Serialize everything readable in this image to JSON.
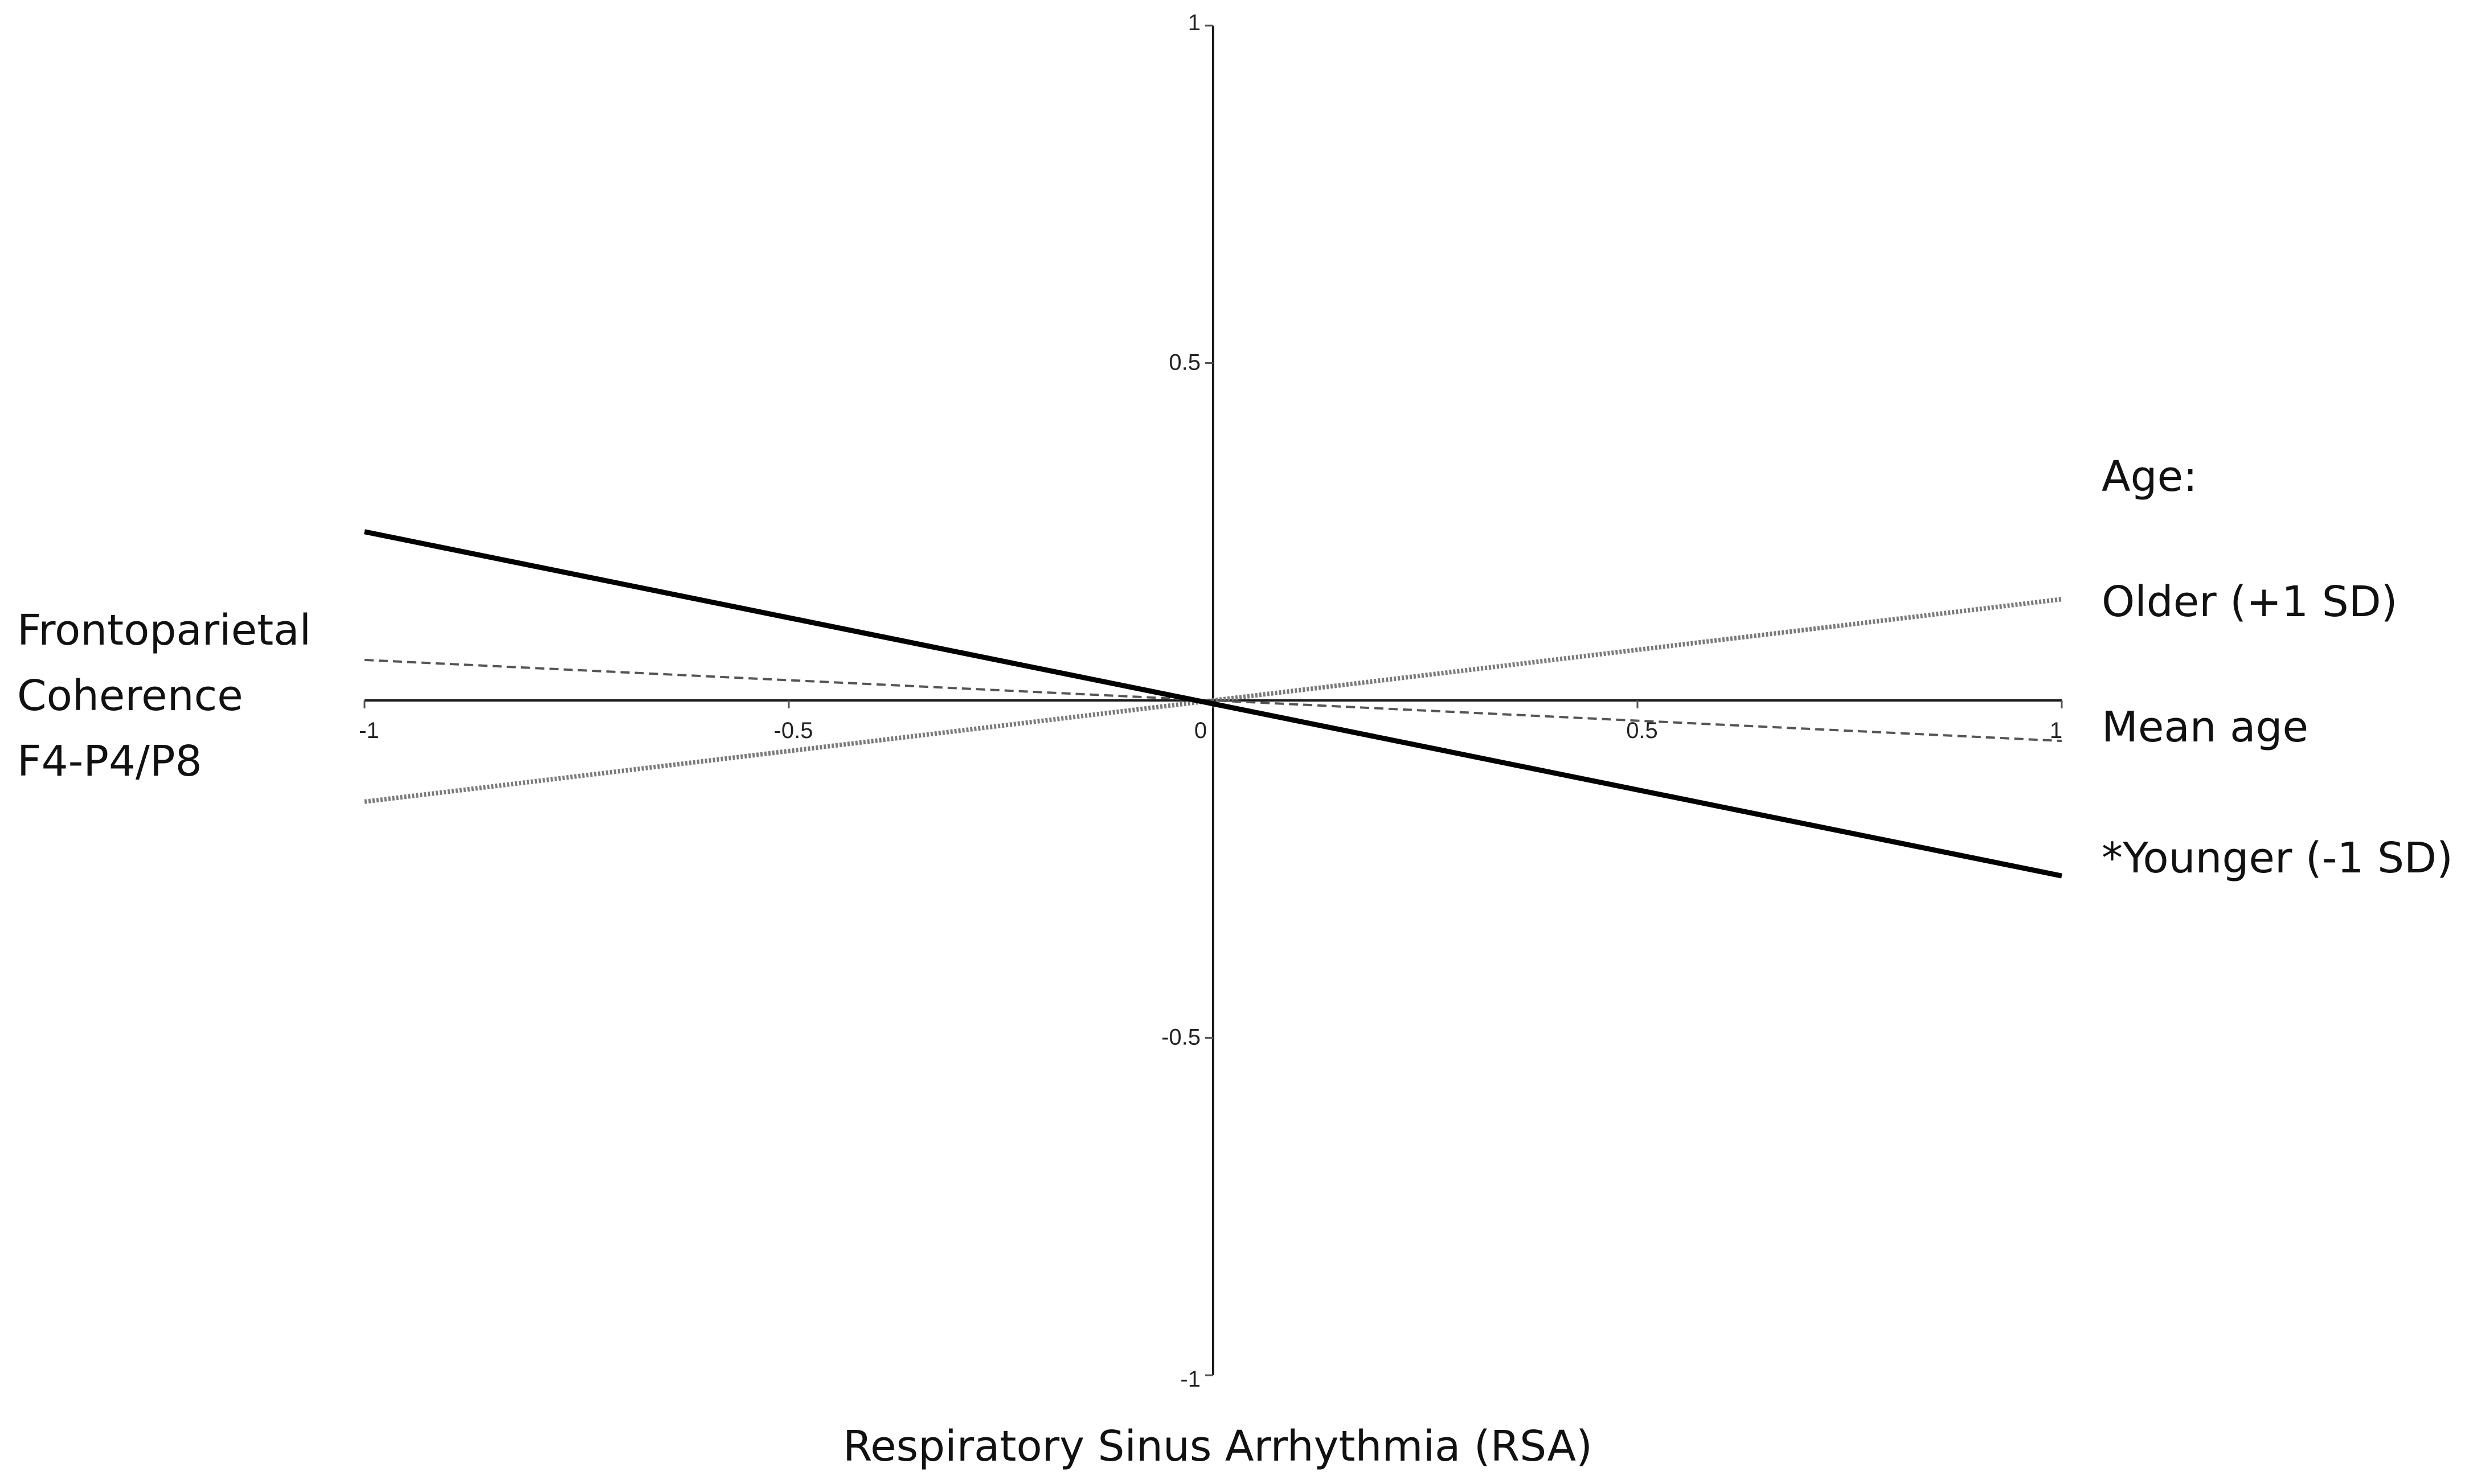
{
  "chart_data": {
    "type": "line",
    "title": "",
    "xlabel": "Respiratory Sinus Arrhythmia (RSA)",
    "ylabel": [
      "Frontoparietal",
      "Coherence",
      "F4-P4/P8"
    ],
    "xlim": [
      -1,
      1
    ],
    "ylim": [
      -1,
      1
    ],
    "x_ticks": [
      "-1",
      "-0.5",
      "0",
      "0.5",
      "1"
    ],
    "y_ticks": [
      "1",
      "0.5",
      "-0.5",
      "-1"
    ],
    "grid": false,
    "legend_title": "Age:",
    "legend_position": "right",
    "series": [
      {
        "name": "Older (+1 SD)",
        "style": "dotted",
        "color": "#7a7a7a",
        "x": [
          -1,
          1
        ],
        "y": [
          -0.15,
          0.15
        ]
      },
      {
        "name": "Mean age",
        "style": "dashed",
        "color": "#555555",
        "x": [
          -1,
          1
        ],
        "y": [
          0.06,
          -0.06
        ]
      },
      {
        "name": "*Younger (-1 SD)",
        "style": "solid",
        "color": "#000000",
        "x": [
          -1,
          1
        ],
        "y": [
          0.25,
          -0.26
        ]
      }
    ]
  }
}
